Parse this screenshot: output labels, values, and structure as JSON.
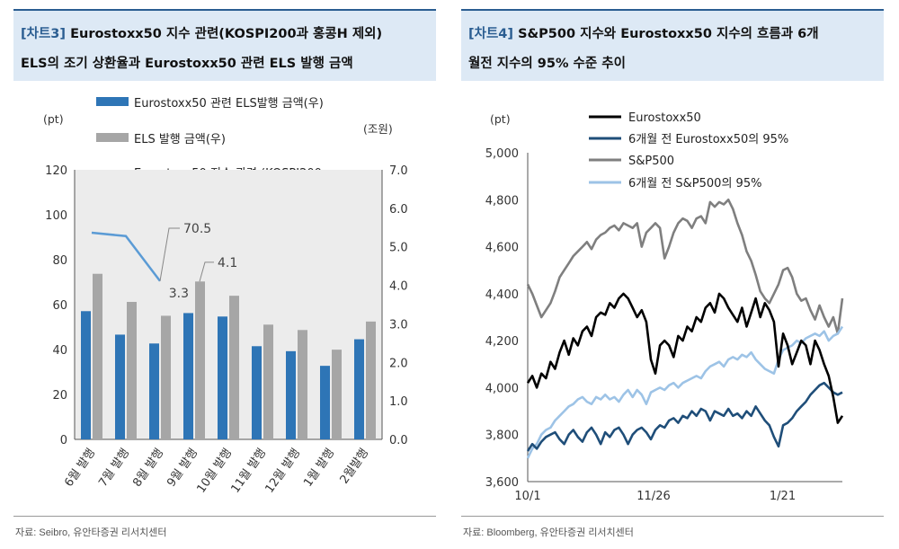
{
  "left_panel": {
    "tag": "[차트3]",
    "title_line1": "Eurostoxx50 지수 관련(KOSPI200과 홍콩H 제외)",
    "title_line2": "ELS의 조기 상환율과 Eurostoxx50 관련 ELS 발행 금액",
    "source": "자료: Seibro, 유안타증권 리서치센터"
  },
  "right_panel": {
    "tag": "[차트4]",
    "title_line1": "S&P500 지수와 Eurostoxx50 지수의 흐름과 6개",
    "title_line2": "월전 지수의 95% 수준 추이",
    "source": "자료: Bloomberg, 유안타증권 리서치센터"
  },
  "chart_data": [
    {
      "type": "bar",
      "ylabel_left": "(pt)",
      "ylabel_right": "(조원)",
      "ylim_left": [
        0,
        120
      ],
      "ylim_right": [
        0,
        7
      ],
      "yticks_left": [
        "0",
        "20",
        "40",
        "60",
        "80",
        "100",
        "120"
      ],
      "yticks_right": [
        "0.0",
        "1.0",
        "2.0",
        "3.0",
        "4.0",
        "5.0",
        "6.0",
        "7.0"
      ],
      "categories": [
        "6월 발행",
        "7월 발행",
        "8월 발행",
        "9월 발행",
        "10월 발행",
        "11월 발행",
        "12월 발행",
        "1월 발행",
        "2월발행"
      ],
      "series": [
        {
          "name": "Eurostoxx50 관련 ELS발행 금액(우)",
          "axis": "right",
          "color": "#2e75b6",
          "values": [
            3.33,
            2.72,
            2.49,
            3.28,
            3.19,
            2.42,
            2.29,
            1.91,
            2.6
          ]
        },
        {
          "name": "ELS 발행 금액(우)",
          "axis": "right",
          "color": "#a6a6a6",
          "values": [
            4.3,
            3.57,
            3.21,
            4.1,
            3.73,
            2.98,
            2.84,
            2.33,
            3.06
          ]
        },
        {
          "name": "Eurostoxx50 지수 관련 (KOSPI200, 홍콩H 제외) ELS 조기 상환율(좌)",
          "axis": "left",
          "color": "#5b9bd5",
          "values": [
            92,
            90.5,
            70.5,
            null,
            null,
            null,
            null,
            null,
            null
          ]
        }
      ],
      "annotations": [
        "70.5",
        "4.1",
        "3.3"
      ],
      "legend_position": "top"
    },
    {
      "type": "line",
      "ylabel": "(pt)",
      "ylim": [
        3600,
        5000
      ],
      "yticks": [
        "3,600",
        "3,800",
        "4,000",
        "4,200",
        "4,400",
        "4,600",
        "4,800",
        "5,000"
      ],
      "xticks": [
        "10/1",
        "11/26",
        "1/21"
      ],
      "series": [
        {
          "name": "Eurostoxx50",
          "color": "#000000",
          "values": [
            4020,
            4050,
            4000,
            4060,
            4040,
            4110,
            4080,
            4150,
            4200,
            4140,
            4210,
            4180,
            4240,
            4260,
            4220,
            4300,
            4320,
            4310,
            4360,
            4340,
            4380,
            4400,
            4380,
            4340,
            4300,
            4330,
            4280,
            4120,
            4060,
            4180,
            4200,
            4180,
            4130,
            4220,
            4200,
            4260,
            4240,
            4300,
            4280,
            4340,
            4360,
            4320,
            4400,
            4380,
            4340,
            4310,
            4280,
            4340,
            4260,
            4320,
            4380,
            4300,
            4360,
            4330,
            4280,
            4090,
            4230,
            4180,
            4100,
            4150,
            4200,
            4180,
            4100,
            4200,
            4160,
            4100,
            4050,
            3960,
            3850,
            3880
          ]
        },
        {
          "name": "6개월 전 Eurostoxx50의 95%",
          "color": "#1f4e79",
          "values": [
            3730,
            3760,
            3740,
            3770,
            3790,
            3800,
            3810,
            3780,
            3760,
            3800,
            3820,
            3790,
            3770,
            3810,
            3830,
            3800,
            3760,
            3810,
            3790,
            3820,
            3830,
            3800,
            3760,
            3800,
            3820,
            3830,
            3810,
            3780,
            3820,
            3840,
            3830,
            3860,
            3870,
            3850,
            3880,
            3870,
            3900,
            3880,
            3910,
            3900,
            3860,
            3900,
            3890,
            3880,
            3910,
            3880,
            3890,
            3870,
            3900,
            3880,
            3920,
            3890,
            3860,
            3840,
            3790,
            3750,
            3840,
            3850,
            3870,
            3900,
            3920,
            3940,
            3970,
            3990,
            4010,
            4020,
            4000,
            3980,
            3970,
            3980
          ]
        },
        {
          "name": "S&P500",
          "color": "#7f7f7f",
          "values": [
            4440,
            4400,
            4350,
            4300,
            4330,
            4360,
            4410,
            4470,
            4500,
            4530,
            4560,
            4580,
            4600,
            4620,
            4590,
            4630,
            4650,
            4660,
            4680,
            4690,
            4670,
            4700,
            4690,
            4680,
            4700,
            4600,
            4660,
            4680,
            4700,
            4680,
            4550,
            4600,
            4660,
            4700,
            4720,
            4710,
            4680,
            4720,
            4730,
            4700,
            4790,
            4770,
            4790,
            4780,
            4800,
            4760,
            4700,
            4650,
            4580,
            4540,
            4480,
            4410,
            4380,
            4360,
            4400,
            4440,
            4500,
            4510,
            4470,
            4400,
            4370,
            4380,
            4330,
            4290,
            4350,
            4300,
            4260,
            4300,
            4230,
            4380
          ]
        },
        {
          "name": "6개월 전 S&P500의 95%",
          "color": "#9dc3e6",
          "values": [
            3700,
            3740,
            3760,
            3800,
            3820,
            3830,
            3860,
            3880,
            3900,
            3920,
            3930,
            3950,
            3960,
            3940,
            3930,
            3960,
            3950,
            3970,
            3950,
            3960,
            3940,
            3970,
            3990,
            3960,
            3990,
            3970,
            3930,
            3980,
            3990,
            4000,
            3990,
            4010,
            4020,
            4000,
            4020,
            4030,
            4040,
            4050,
            4040,
            4070,
            4090,
            4100,
            4110,
            4090,
            4120,
            4130,
            4120,
            4140,
            4130,
            4150,
            4120,
            4100,
            4080,
            4070,
            4060,
            4120,
            4160,
            4170,
            4180,
            4200,
            4190,
            4210,
            4220,
            4230,
            4220,
            4240,
            4200,
            4220,
            4230,
            4260
          ]
        }
      ],
      "legend_position": "top"
    }
  ]
}
